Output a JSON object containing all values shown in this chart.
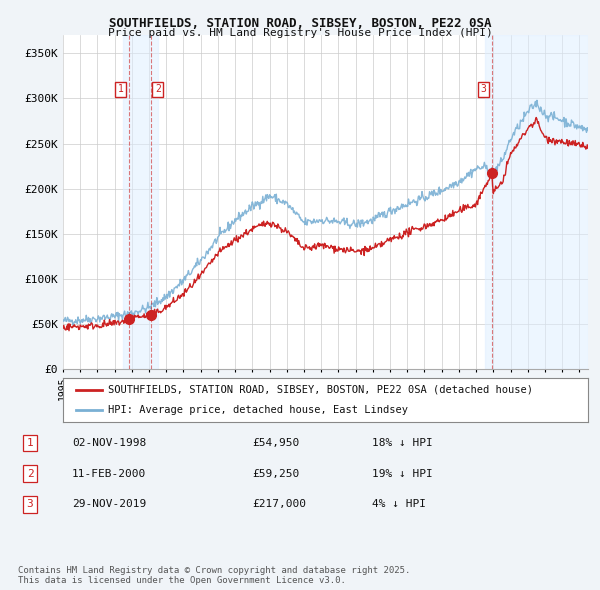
{
  "title_line1": "SOUTHFIELDS, STATION ROAD, SIBSEY, BOSTON, PE22 0SA",
  "title_line2": "Price paid vs. HM Land Registry's House Price Index (HPI)",
  "ylim": [
    0,
    370000
  ],
  "yticks": [
    0,
    50000,
    100000,
    150000,
    200000,
    250000,
    300000,
    350000
  ],
  "ytick_labels": [
    "£0",
    "£50K",
    "£100K",
    "£150K",
    "£200K",
    "£250K",
    "£300K",
    "£350K"
  ],
  "background_color": "#f0f4f8",
  "plot_bg_color": "#ffffff",
  "grid_color": "#cccccc",
  "hpi_color": "#7ab0d4",
  "price_color": "#cc2222",
  "legend_label_price": "SOUTHFIELDS, STATION ROAD, SIBSEY, BOSTON, PE22 0SA (detached house)",
  "legend_label_hpi": "HPI: Average price, detached house, East Lindsey",
  "transaction_labels": [
    "1",
    "2",
    "3"
  ],
  "transaction_dates_num": [
    1998.84,
    2000.11,
    2019.91
  ],
  "transaction_prices": [
    54950,
    59250,
    217000
  ],
  "transaction_info": [
    {
      "num": "1",
      "date": "02-NOV-1998",
      "price": "£54,950",
      "hpi": "18% ↓ HPI"
    },
    {
      "num": "2",
      "date": "11-FEB-2000",
      "price": "£59,250",
      "hpi": "19% ↓ HPI"
    },
    {
      "num": "3",
      "date": "29-NOV-2019",
      "price": "£217,000",
      "hpi": "4% ↓ HPI"
    }
  ],
  "footer_text": "Contains HM Land Registry data © Crown copyright and database right 2025.\nThis data is licensed under the Open Government Licence v3.0.",
  "xmin": 1995.0,
  "xmax": 2025.5,
  "shade_ranges": [
    [
      1998.5,
      2000.5
    ],
    [
      2019.5,
      2025.5
    ]
  ]
}
